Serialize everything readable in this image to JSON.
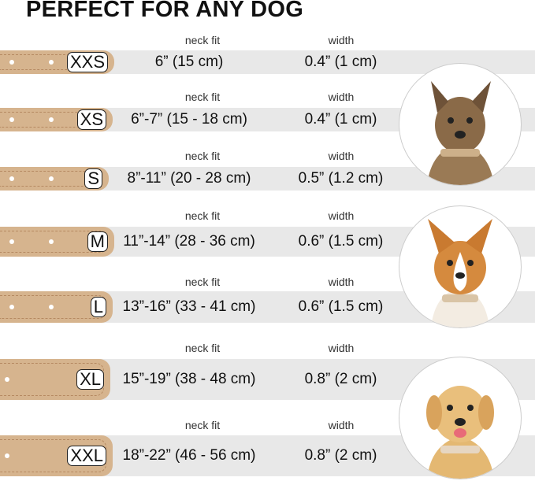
{
  "title": "PERFECT FOR ANY DOG",
  "neck_label": "neck fit",
  "width_label": "width",
  "colors": {
    "collar": "#d6b48e",
    "band": "#e8e8e8"
  },
  "sizes": [
    {
      "size": "XXS",
      "neck": "6” (15 cm)",
      "width": "0.4” (1 cm)"
    },
    {
      "size": "XS",
      "neck": "6”-7” (15 - 18 cm)",
      "width": "0.4” (1 cm)"
    },
    {
      "size": "S",
      "neck": "8”-11” (20 - 28 cm)",
      "width": "0.5” (1.2 cm)"
    },
    {
      "size": "M",
      "neck": "11”-14” (28 - 36 cm)",
      "width": "0.6” (1.5 cm)"
    },
    {
      "size": "L",
      "neck": "13”-16” (33 - 41 cm)",
      "width": "0.6” (1.5 cm)"
    },
    {
      "size": "XL",
      "neck": "15”-19” (38 - 48 cm)",
      "width": "0.8” (2 cm)"
    },
    {
      "size": "XXL",
      "neck": "18”-22” (46 - 56 cm)",
      "width": "0.8” (2 cm)"
    }
  ],
  "dog_images": [
    "terrier-photo",
    "corgi-photo",
    "labrador-photo"
  ]
}
